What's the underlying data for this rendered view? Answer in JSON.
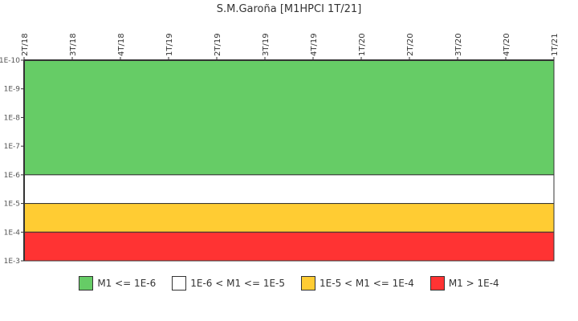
{
  "chart_data": {
    "type": "area",
    "title": "S.M.Garoña [M1HPCI 1T/21]",
    "xlabel": "",
    "ylabel": "",
    "x_ticks": [
      "2T/18",
      "3T/18",
      "4T/18",
      "1T/19",
      "2T/19",
      "3T/19",
      "4T/19",
      "1T/20",
      "2T/20",
      "3T/20",
      "4T/20",
      "1T/21"
    ],
    "y_ticks": [
      "1E-10",
      "1E-9",
      "1E-8",
      "1E-7",
      "1E-6",
      "1E-5",
      "1E-4",
      "1E-3"
    ],
    "y_scale": "log",
    "ylim": [
      1e-10,
      0.001
    ],
    "y_inverted": true,
    "bands": [
      {
        "label": "M1 <= 1E-6",
        "from": 1e-10,
        "to": 1e-06,
        "color": "#66cc66"
      },
      {
        "label": "1E-6 < M1 <= 1E-5",
        "from": 1e-06,
        "to": 1e-05,
        "color": "#ffffff"
      },
      {
        "label": "1E-5 < M1 <= 1E-4",
        "from": 1e-05,
        "to": 0.0001,
        "color": "#ffcc33"
      },
      {
        "label": "M1 > 1E-4",
        "from": 0.0001,
        "to": 0.001,
        "color": "#ff3333"
      }
    ],
    "series": [],
    "legend_position": "bottom",
    "grid": false
  },
  "legend": [
    {
      "label": "M1 <= 1E-6",
      "color": "#66cc66"
    },
    {
      "label": "1E-6 < M1 <= 1E-5",
      "color": "#ffffff"
    },
    {
      "label": "1E-5 < M1 <= 1E-4",
      "color": "#ffcc33"
    },
    {
      "label": "M1 > 1E-4",
      "color": "#ff3333"
    }
  ]
}
